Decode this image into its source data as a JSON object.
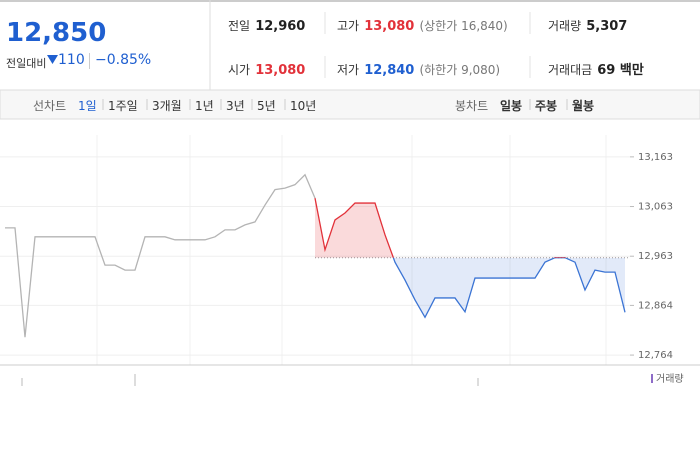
{
  "header": {
    "price": "12,850",
    "change_label": "전일대비",
    "change": "110",
    "change_rate": "−0.85%",
    "stats": [
      {
        "label": "전일",
        "value": "12,960"
      },
      {
        "label": "고가",
        "value": "13,080",
        "note": "(상한가 16,840)"
      },
      {
        "label": "거래량",
        "value": "5,307"
      },
      {
        "label": "시가",
        "value": "13,080"
      },
      {
        "label": "저가",
        "value": "12,840",
        "note": "(하한가 9,080)"
      },
      {
        "label": "거래대금",
        "value": "69 백만"
      }
    ]
  },
  "tabs": {
    "line_label": "선차트",
    "line": [
      "1일",
      "1주일",
      "3개월",
      "1년",
      "3년",
      "5년",
      "10년"
    ],
    "candle_label": "봉차트",
    "candle": [
      "일봉",
      "주봉",
      "월봉"
    ]
  },
  "chart_data": {
    "type": "line",
    "series": [
      {
        "color": "#b4b4b4",
        "values": [
          13020,
          13020,
          12800,
          13002,
          13002,
          13002,
          13002,
          13002,
          13002,
          13002,
          12945,
          12945,
          12935,
          12935,
          13002,
          13002,
          13002,
          12996,
          12996,
          12996,
          12996,
          13002,
          13016,
          13016,
          13026,
          13032,
          13066,
          13097,
          13100,
          13107,
          13127,
          13080,
          null,
          null,
          null,
          null,
          null,
          null,
          null,
          null,
          null,
          null,
          null,
          null,
          null,
          null,
          null,
          null,
          null,
          null,
          null,
          null,
          null,
          null,
          null,
          null,
          null,
          null,
          null,
          null,
          null,
          null,
          null
        ]
      },
      {
        "color": "#3b74d4",
        "color_above": "#e2323a",
        "values": [
          null,
          null,
          null,
          null,
          null,
          null,
          null,
          null,
          null,
          null,
          null,
          null,
          null,
          null,
          null,
          null,
          null,
          null,
          null,
          null,
          null,
          null,
          null,
          null,
          null,
          null,
          null,
          null,
          null,
          null,
          null,
          13080,
          12976,
          13036,
          13050,
          13070,
          13070,
          13070,
          13006,
          12951,
          12915,
          12875,
          12840,
          12879,
          12879,
          12879,
          12851,
          12919,
          12919,
          12919,
          12919,
          12919,
          12919,
          12919,
          12951,
          12960,
          12960,
          12951,
          12895,
          12935,
          12931,
          12931,
          12850
        ]
      }
    ],
    "baseline": 12960,
    "ylim": [
      12744,
      13207
    ],
    "yticks": [
      {
        "value": 12764,
        "label": "12,764"
      },
      {
        "value": 12864,
        "label": "12,864"
      },
      {
        "value": 12963,
        "label": "12,963"
      },
      {
        "value": 13063,
        "label": "13,063"
      },
      {
        "value": 13163,
        "label": "13,163"
      }
    ],
    "grid": true,
    "volume_legend": "거래량"
  }
}
